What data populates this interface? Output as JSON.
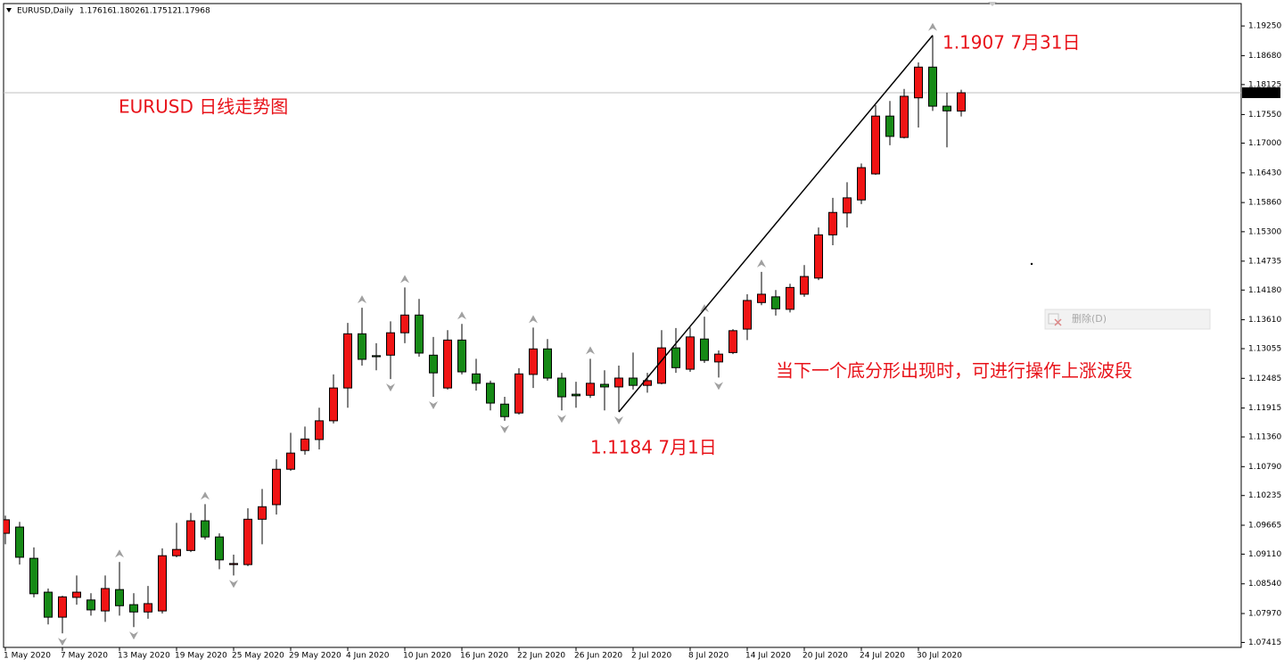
{
  "chart_data": {
    "type": "candlestick",
    "title": "EURUSD,Daily",
    "categories": [
      "1 May 2020",
      null,
      null,
      null,
      "7 May 2020",
      null,
      null,
      null,
      "13 May 2020",
      null,
      null,
      null,
      "19 May 2020",
      null,
      null,
      null,
      "25 May 2020",
      null,
      null,
      null,
      "29 May 2020",
      null,
      null,
      null,
      "4 Jun 2020",
      null,
      null,
      null,
      "10 Jun 2020",
      null,
      null,
      null,
      "16 Jun 2020",
      null,
      null,
      null,
      "22 Jun 2020",
      null,
      null,
      null,
      "26 Jun 2020",
      null,
      null,
      null,
      "2 Jul 2020",
      null,
      null,
      null,
      "8 Jul 2020",
      null,
      null,
      null,
      "14 Jul 2020",
      null,
      null,
      null,
      "20 Jul 2020",
      null,
      null,
      null,
      "24 Jul 2020",
      null,
      null,
      null,
      "30 Jul 2020",
      null,
      null,
      null
    ],
    "open": [
      1.0951,
      1.0963,
      1.0903,
      1.0838,
      1.079,
      1.0828,
      1.0823,
      1.0802,
      1.0843,
      1.0814,
      1.08,
      1.0802,
      1.0908,
      1.0918,
      1.0975,
      1.0944,
      1.0891,
      1.0891,
      1.0978,
      1.1006,
      1.1074,
      1.111,
      1.1131,
      1.1167,
      1.123,
      1.1334,
      1.1292,
      1.1293,
      1.1336,
      1.137,
      1.1293,
      1.123,
      1.1322,
      1.1257,
      1.1239,
      1.1199,
      1.1182,
      1.1256,
      1.1305,
      1.1249,
      1.1218,
      1.1216,
      1.1237,
      1.1232,
      1.1249,
      1.1235,
      1.1239,
      1.1307,
      1.1266,
      1.1324,
      1.128,
      1.1298,
      1.1343,
      1.1394,
      1.1405,
      1.1381,
      1.141,
      1.1441,
      1.1524,
      1.1566,
      1.1591,
      1.1641,
      1.1752,
      1.1711,
      1.1787,
      1.1846,
      1.1771,
      1.17616
    ],
    "high": [
      1.0985,
      1.0973,
      1.0924,
      1.0845,
      1.0831,
      1.087,
      1.0836,
      1.087,
      1.0896,
      1.0836,
      1.085,
      1.0922,
      1.0971,
      1.099,
      1.1007,
      1.0951,
      1.091,
      1.0999,
      1.1036,
      1.1093,
      1.1144,
      1.1156,
      1.1192,
      1.1256,
      1.1355,
      1.1384,
      1.1316,
      1.1358,
      1.1423,
      1.1401,
      1.1328,
      1.1341,
      1.1353,
      1.1286,
      1.1244,
      1.1213,
      1.1268,
      1.1346,
      1.1324,
      1.1259,
      1.1242,
      1.1286,
      1.1264,
      1.1273,
      1.1298,
      1.1259,
      1.1341,
      1.1345,
      1.1346,
      1.1367,
      1.1302,
      1.1343,
      1.141,
      1.1453,
      1.1418,
      1.143,
      1.1466,
      1.1538,
      1.1595,
      1.1625,
      1.1661,
      1.1773,
      1.1781,
      1.1804,
      1.1855,
      1.1907,
      1.1797,
      1.18026
    ],
    "low": [
      1.093,
      1.0891,
      1.0828,
      1.0776,
      1.0759,
      1.0814,
      1.0793,
      1.0781,
      1.0793,
      1.0771,
      1.0787,
      1.0797,
      1.0905,
      1.0915,
      1.0939,
      1.0882,
      1.087,
      1.0888,
      1.093,
      1.0987,
      1.1071,
      1.1102,
      1.1112,
      1.1162,
      1.1192,
      1.1273,
      1.1264,
      1.1247,
      1.1316,
      1.129,
      1.1213,
      1.1227,
      1.1256,
      1.1225,
      1.1187,
      1.1167,
      1.1179,
      1.123,
      1.1244,
      1.1187,
      1.1192,
      1.1211,
      1.1187,
      1.1184,
      1.1227,
      1.1221,
      1.1237,
      1.1259,
      1.1261,
      1.1278,
      1.125,
      1.1295,
      1.1322,
      1.1389,
      1.1369,
      1.1375,
      1.1405,
      1.1437,
      1.1504,
      1.1538,
      1.1583,
      1.1639,
      1.1696,
      1.1709,
      1.173,
      1.1762,
      1.1692,
      1.17512
    ],
    "close": [
      1.0977,
      1.0905,
      1.0835,
      1.079,
      1.0829,
      1.0838,
      1.0804,
      1.0845,
      1.0812,
      1.08,
      1.0816,
      1.0908,
      1.092,
      1.0975,
      1.0944,
      1.09,
      1.0893,
      1.0978,
      1.1002,
      1.1074,
      1.1105,
      1.1132,
      1.1167,
      1.123,
      1.1334,
      1.1285,
      1.129,
      1.1336,
      1.137,
      1.1297,
      1.1259,
      1.1322,
      1.1261,
      1.1239,
      1.1201,
      1.1175,
      1.1257,
      1.1305,
      1.1249,
      1.1213,
      1.1215,
      1.1239,
      1.1232,
      1.1249,
      1.1235,
      1.1244,
      1.1307,
      1.1269,
      1.1328,
      1.1283,
      1.1295,
      1.134,
      1.1398,
      1.141,
      1.1382,
      1.1423,
      1.1444,
      1.1524,
      1.1567,
      1.1595,
      1.1653,
      1.1752,
      1.1713,
      1.179,
      1.1846,
      1.1771,
      1.1762,
      1.17968
    ],
    "up_color": "#f01414",
    "down_color": "#168a16",
    "ylim": [
      1.0732,
      1.1968
    ],
    "yticks": [
      {
        "value": 1.1925,
        "label": "1.19250"
      },
      {
        "value": 1.1868,
        "label": "1.18680"
      },
      1.18125,
      {
        "value": 1.1755,
        "label": "1.17550"
      },
      {
        "value": 1.17,
        "label": "1.17000"
      },
      {
        "value": 1.1643,
        "label": "1.16430"
      },
      {
        "value": 1.1586,
        "label": "1.15860"
      },
      {
        "value": 1.153,
        "label": "1.15300"
      },
      1.14735,
      {
        "value": 1.1418,
        "label": "1.14180"
      },
      {
        "value": 1.1361,
        "label": "1.13610"
      },
      1.13055,
      1.12485,
      1.11915,
      {
        "value": 1.1136,
        "label": "1.11360"
      },
      {
        "value": 1.1079,
        "label": "1.10790"
      },
      1.10235,
      1.09665,
      {
        "value": 1.0911,
        "label": "1.09110"
      },
      {
        "value": 1.0854,
        "label": "1.08540"
      },
      {
        "value": 1.0797,
        "label": "1.07970"
      },
      1.07415
    ],
    "fractals": true,
    "annotations": [
      "EURUSD 日线走势图",
      "1.1907  7月31日",
      "1.1184  7月1日",
      "当下一个底分形出现时，可进行操作上涨波段"
    ]
  },
  "context_menu": {
    "item": "删除(D)"
  }
}
